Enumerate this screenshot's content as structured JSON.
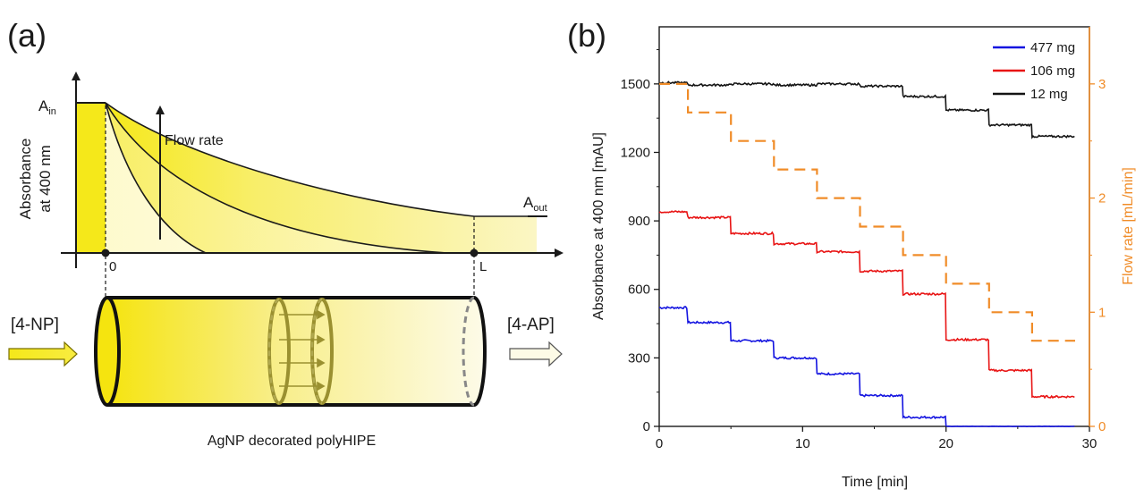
{
  "panel_a": {
    "label": "(a)",
    "ylabel_line1": "Absorbance",
    "ylabel_line2": "at 400 nm",
    "a_in": "A",
    "a_in_sub": "in",
    "a_out": "A",
    "a_out_sub": "out",
    "flow_rate_label": "Flow rate",
    "x_zero": "0",
    "x_L": "L",
    "inlet_label": "[4-NP]",
    "outlet_label": "[4-AP]",
    "caption": "AgNP decorated polyHIPE",
    "colors": {
      "yellow": "#f5e81a",
      "pale": "#fbf7c8",
      "outlet_arrow": "#fdfbe6"
    }
  },
  "panel_b": {
    "label": "(b)"
  },
  "chart_data": {
    "type": "line",
    "title": "",
    "xlabel": "Time [min]",
    "ylabel": "Absorbance at 400 nm [mAU]",
    "y2label": "Flow rate [mL/min]",
    "xlim": [
      0,
      30
    ],
    "ylim": [
      0,
      1750
    ],
    "y2lim": [
      0,
      3.5
    ],
    "xticks": [
      0,
      10,
      20,
      30
    ],
    "yticks": [
      0,
      300,
      600,
      900,
      1200,
      1500
    ],
    "y2ticks": [
      0,
      1,
      2,
      3
    ],
    "legend_position": "top-right",
    "series": [
      {
        "name": "477 mg",
        "axis": "left",
        "color": "#1414e0",
        "steps": [
          [
            0,
            520
          ],
          [
            2,
            455
          ],
          [
            5,
            375
          ],
          [
            8,
            300
          ],
          [
            11,
            230
          ],
          [
            14,
            135
          ],
          [
            17,
            40
          ],
          [
            20,
            0
          ]
        ],
        "end": 29
      },
      {
        "name": "106 mg",
        "axis": "left",
        "color": "#e81414",
        "steps": [
          [
            0,
            940
          ],
          [
            2,
            915
          ],
          [
            5,
            845
          ],
          [
            8,
            800
          ],
          [
            11,
            765
          ],
          [
            14,
            680
          ],
          [
            17,
            580
          ],
          [
            20,
            380
          ],
          [
            23,
            245
          ],
          [
            26,
            130
          ]
        ],
        "end": 29
      },
      {
        "name": "12 mg",
        "axis": "left",
        "color": "#141414",
        "steps": [
          [
            0,
            1505
          ],
          [
            2,
            1495
          ],
          [
            5,
            1500
          ],
          [
            8,
            1495
          ],
          [
            11,
            1500
          ],
          [
            14,
            1490
          ],
          [
            17,
            1445
          ],
          [
            20,
            1385
          ],
          [
            23,
            1320
          ],
          [
            26,
            1270
          ]
        ],
        "end": 29
      },
      {
        "name": "Flow rate",
        "axis": "right",
        "color": "#f08c28",
        "dashed": true,
        "steps": [
          [
            0,
            3.0
          ],
          [
            2,
            2.75
          ],
          [
            5,
            2.5
          ],
          [
            8,
            2.25
          ],
          [
            11,
            2.0
          ],
          [
            14,
            1.75
          ],
          [
            17,
            1.5
          ],
          [
            20,
            1.25
          ],
          [
            23,
            1.0
          ],
          [
            26,
            0.75
          ]
        ],
        "end": 29
      }
    ]
  }
}
